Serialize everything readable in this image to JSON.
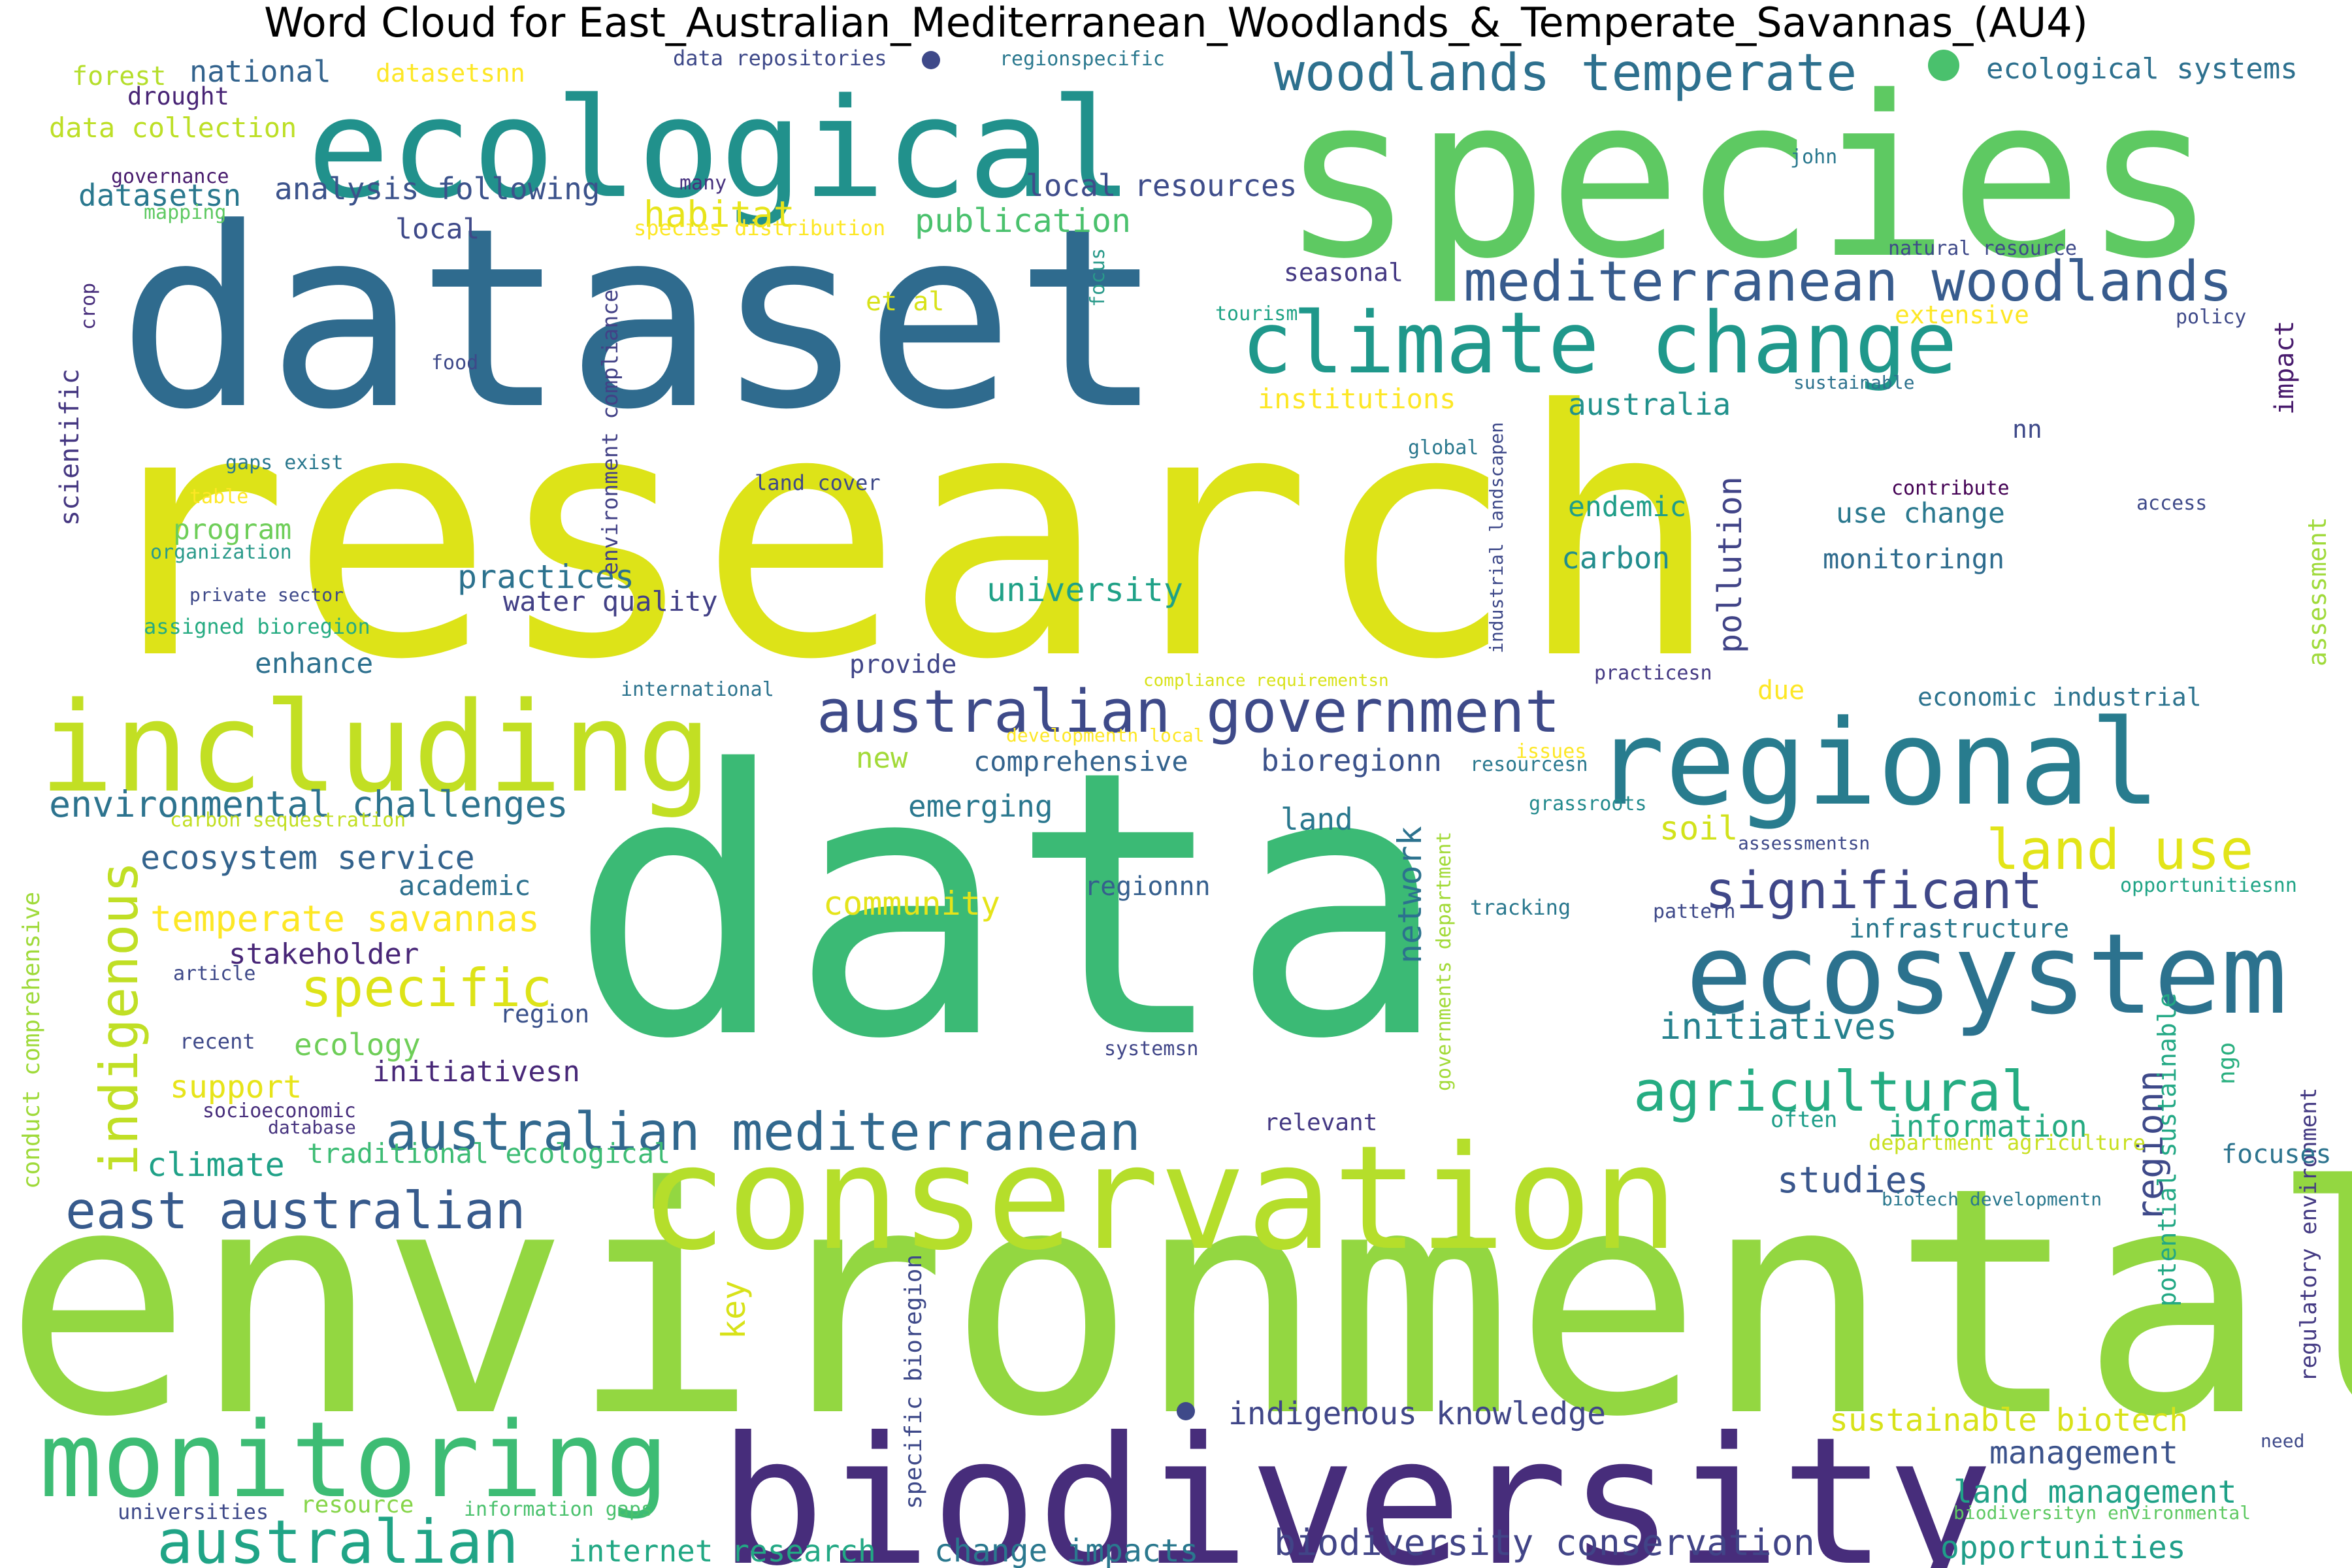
{
  "title": "Word Cloud for East_Australian_Mediterranean_Woodlands_&_Temperate_Savannas_(AU4)",
  "palette": "viridis",
  "words": [
    {
      "text": "research",
      "color": "#dde318"
    },
    {
      "text": "data",
      "color": "#3bba75"
    },
    {
      "text": "environmental",
      "color": "#93d741"
    },
    {
      "text": "dataset",
      "color": "#2f6b8e"
    },
    {
      "text": "species",
      "color": "#5ec962"
    },
    {
      "text": "ecological",
      "color": "#21918c"
    },
    {
      "text": "biodiversity",
      "color": "#472d7b"
    },
    {
      "text": "conservation",
      "color": "#b5de2b"
    },
    {
      "text": "including",
      "color": "#c2df23"
    },
    {
      "text": "regional",
      "color": "#287c8e"
    },
    {
      "text": "ecosystem",
      "color": "#2c728e"
    },
    {
      "text": "monitoring",
      "color": "#3dbc74"
    },
    {
      "text": "climate change",
      "color": "#1f988b"
    },
    {
      "text": "australian government",
      "color": "#3e4a89"
    },
    {
      "text": "australian mediterranean",
      "color": "#31688e"
    },
    {
      "text": "mediterranean woodlands",
      "color": "#375b8d"
    },
    {
      "text": "woodlands temperate",
      "color": "#2d708e"
    },
    {
      "text": "significant",
      "color": "#3f4788"
    },
    {
      "text": "agricultural",
      "color": "#25ac82"
    },
    {
      "text": "land use",
      "color": "#e2e418"
    },
    {
      "text": "east australian",
      "color": "#375a8c"
    },
    {
      "text": "australian",
      "color": "#20a486"
    },
    {
      "text": "indigenous",
      "color": "#c0df25"
    },
    {
      "text": "specific",
      "color": "#dde318"
    },
    {
      "text": "environmental challenges",
      "color": "#2c738e"
    },
    {
      "text": "biodiversity conservation",
      "color": "#414487"
    },
    {
      "text": "initiatives",
      "color": "#26818e"
    },
    {
      "text": "temperate savannas",
      "color": "#fde725"
    },
    {
      "text": "ecosystem service",
      "color": "#33638d"
    },
    {
      "text": "indigenous knowledge",
      "color": "#404688"
    },
    {
      "text": "land management",
      "color": "#1fa187"
    },
    {
      "text": "sustainable biotech",
      "color": "#d8e219"
    },
    {
      "text": "opportunities",
      "color": "#1f9e89"
    },
    {
      "text": "change impacts",
      "color": "#2a788e"
    },
    {
      "text": "internet research",
      "color": "#22a884"
    },
    {
      "text": "management",
      "color": "#3b528b"
    },
    {
      "text": "studies",
      "color": "#39568c"
    },
    {
      "text": "information",
      "color": "#25ab82"
    },
    {
      "text": "regionn",
      "color": "#3e4989"
    },
    {
      "text": "habitat",
      "color": "#e7e419"
    },
    {
      "text": "publication",
      "color": "#4ac16d"
    },
    {
      "text": "local resources",
      "color": "#3e4c8a"
    },
    {
      "text": "analysis following",
      "color": "#3b528b"
    },
    {
      "text": "practices",
      "color": "#2c728e"
    },
    {
      "text": "water quality",
      "color": "#424086"
    },
    {
      "text": "university",
      "color": "#1fa187"
    },
    {
      "text": "australia",
      "color": "#21918c"
    },
    {
      "text": "endemic",
      "color": "#1f9e89"
    },
    {
      "text": "use change",
      "color": "#2a788e"
    },
    {
      "text": "monitoringn",
      "color": "#2f6c8e"
    },
    {
      "text": "carbon",
      "color": "#228d8d"
    },
    {
      "text": "pollution",
      "color": "#414487"
    },
    {
      "text": "bioregionn",
      "color": "#3b528b"
    },
    {
      "text": "comprehensive",
      "color": "#33638d"
    },
    {
      "text": "emerging",
      "color": "#2a778e"
    },
    {
      "text": "community",
      "color": "#e5e419"
    },
    {
      "text": "soil",
      "color": "#d2e21b"
    },
    {
      "text": "land",
      "color": "#2a788e"
    },
    {
      "text": "network",
      "color": "#2c728e"
    },
    {
      "text": "regionnn",
      "color": "#355f8d"
    },
    {
      "text": "academic",
      "color": "#2d708e"
    },
    {
      "text": "stakeholder",
      "color": "#482677"
    },
    {
      "text": "ecology",
      "color": "#6ece58"
    },
    {
      "text": "support",
      "color": "#e7e419"
    },
    {
      "text": "region",
      "color": "#3b528b"
    },
    {
      "text": "initiativesn",
      "color": "#482878"
    },
    {
      "text": "climate",
      "color": "#1fa187"
    },
    {
      "text": "traditional ecological",
      "color": "#3dbc74"
    },
    {
      "text": "key",
      "color": "#d8e219"
    },
    {
      "text": "enhance",
      "color": "#2d708e"
    },
    {
      "text": "program",
      "color": "#6ece58"
    },
    {
      "text": "datasetsn",
      "color": "#2a788e"
    },
    {
      "text": "data collection",
      "color": "#bddf26"
    },
    {
      "text": "national",
      "color": "#33638d"
    },
    {
      "text": "forest",
      "color": "#b5de2b"
    },
    {
      "text": "drought",
      "color": "#482475"
    },
    {
      "text": "datasetsnn",
      "color": "#fde725"
    },
    {
      "text": "local",
      "color": "#3e4989"
    },
    {
      "text": "new",
      "color": "#a2da37"
    },
    {
      "text": "provide",
      "color": "#404588"
    },
    {
      "text": "due",
      "color": "#fde725"
    },
    {
      "text": "seasonal",
      "color": "#443983"
    },
    {
      "text": "institutions",
      "color": "#fde725"
    },
    {
      "text": "extensive",
      "color": "#fde725"
    },
    {
      "text": "et al",
      "color": "#d8e219"
    },
    {
      "text": "ecological systems",
      "color": "#2d708e"
    },
    {
      "text": "economic industrial",
      "color": "#2c738e"
    },
    {
      "text": "impact",
      "color": "#481b6d"
    },
    {
      "text": "assessment",
      "color": "#9fda3a"
    },
    {
      "text": "potential sustainable",
      "color": "#22a884"
    },
    {
      "text": "regulatory environment",
      "color": "#443a83"
    },
    {
      "text": "focuses",
      "color": "#2c738e"
    },
    {
      "text": "ngo",
      "color": "#29af7f"
    },
    {
      "text": "infrastructure",
      "color": "#2a788e"
    },
    {
      "text": "indigenous",
      "color": "#c0df25"
    },
    {
      "text": "nn",
      "color": "#3e4989"
    },
    {
      "text": "scientific",
      "color": "#453781"
    },
    {
      "text": "conduct comprehensive",
      "color": "#9fda3a"
    },
    {
      "text": "specific bioregion",
      "color": "#3e4989"
    },
    {
      "text": "environment compliance",
      "color": "#424186"
    },
    {
      "text": "resource",
      "color": "#86d549"
    },
    {
      "text": "universities",
      "color": "#3e4989"
    },
    {
      "text": "information gaps",
      "color": "#4ac16d"
    },
    {
      "text": "need",
      "color": "#3e4989"
    },
    {
      "text": "biodiversityn environmental",
      "color": "#5ec962"
    },
    {
      "text": "biotech developmentn",
      "color": "#2a788e"
    },
    {
      "text": "department agriculture",
      "color": "#c8e020"
    },
    {
      "text": "often",
      "color": "#1f9e89"
    },
    {
      "text": "relevant",
      "color": "#443983"
    },
    {
      "text": "database",
      "color": "#46337e"
    },
    {
      "text": "socioeconomic",
      "color": "#472d7b"
    },
    {
      "text": "recent",
      "color": "#3e4989"
    },
    {
      "text": "article",
      "color": "#3e4989"
    },
    {
      "text": "carbon sequestration",
      "color": "#c2df23"
    },
    {
      "text": "systemsn",
      "color": "#404688"
    },
    {
      "text": "governments department",
      "color": "#a2da37"
    },
    {
      "text": "tracking",
      "color": "#2a788e"
    },
    {
      "text": "pattern",
      "color": "#3e4989"
    },
    {
      "text": "opportunitiesnn",
      "color": "#20a486"
    },
    {
      "text": "assessmentsn",
      "color": "#3e4989"
    },
    {
      "text": "grassroots",
      "color": "#238a8d"
    },
    {
      "text": "resourcesn",
      "color": "#2a788e"
    },
    {
      "text": "issues",
      "color": "#fde725"
    },
    {
      "text": "developmentn local",
      "color": "#fde725"
    },
    {
      "text": "international",
      "color": "#2c738e"
    },
    {
      "text": "compliance requirementsn",
      "color": "#d8e219"
    },
    {
      "text": "practicesn",
      "color": "#443983"
    },
    {
      "text": "industrial landscapen",
      "color": "#3e4989"
    },
    {
      "text": "contribute",
      "color": "#440154"
    },
    {
      "text": "access",
      "color": "#3e4989"
    },
    {
      "text": "global",
      "color": "#2a788e"
    },
    {
      "text": "sustainable",
      "color": "#2c728e"
    },
    {
      "text": "tourism",
      "color": "#20a486"
    },
    {
      "text": "policy",
      "color": "#3e4989"
    },
    {
      "text": "natural resource",
      "color": "#3e4989"
    },
    {
      "text": "john",
      "color": "#2a788e"
    },
    {
      "text": "focus",
      "color": "#2a9a8a"
    },
    {
      "text": "species distribution",
      "color": "#fde725"
    },
    {
      "text": "many",
      "color": "#46307e"
    },
    {
      "text": "regionspecific",
      "color": "#2a788e"
    },
    {
      "text": "data repositories",
      "color": "#3e4989"
    },
    {
      "text": "governance",
      "color": "#481b6d"
    },
    {
      "text": "mapping",
      "color": "#5ec962"
    },
    {
      "text": "crop",
      "color": "#472d7b"
    },
    {
      "text": "food",
      "color": "#3e4989"
    },
    {
      "text": "gaps exist",
      "color": "#2a788e"
    },
    {
      "text": "table",
      "color": "#fde725"
    },
    {
      "text": "organization",
      "color": "#2a9a8a"
    },
    {
      "text": "private sector",
      "color": "#3e4989"
    },
    {
      "text": "assigned bioregion",
      "color": "#25ab82"
    },
    {
      "text": "land cover",
      "color": "#3e4989"
    }
  ],
  "dots": [
    {
      "color": "#4ac16d"
    },
    {
      "color": "#3e4989"
    },
    {
      "color": "#2c728e"
    },
    {
      "color": "#3e4989"
    }
  ]
}
